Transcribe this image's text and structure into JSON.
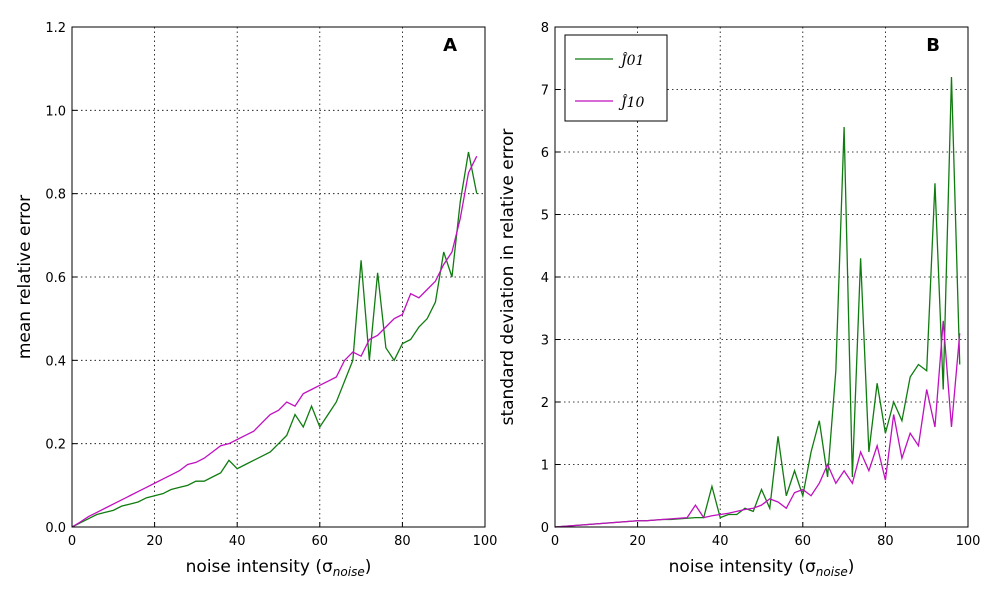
{
  "chart_data": [
    {
      "type": "line",
      "annotation": "A",
      "x_label": [
        "noise intensity (σ",
        "noise",
        ")"
      ],
      "y_label": "mean relative error",
      "x": [
        0,
        2,
        4,
        6,
        8,
        10,
        12,
        14,
        16,
        18,
        20,
        22,
        24,
        26,
        28,
        30,
        32,
        34,
        36,
        38,
        40,
        42,
        44,
        46,
        48,
        50,
        52,
        54,
        56,
        58,
        60,
        62,
        64,
        66,
        68,
        70,
        72,
        74,
        76,
        78,
        80,
        82,
        84,
        86,
        88,
        90,
        92,
        94,
        96,
        98
      ],
      "series": [
        {
          "name": "Ĵ01",
          "color": "#107c10",
          "values": [
            0,
            0.01,
            0.02,
            0.03,
            0.035,
            0.04,
            0.05,
            0.055,
            0.06,
            0.07,
            0.075,
            0.08,
            0.09,
            0.095,
            0.1,
            0.11,
            0.11,
            0.12,
            0.13,
            0.16,
            0.14,
            0.15,
            0.16,
            0.17,
            0.18,
            0.2,
            0.22,
            0.27,
            0.24,
            0.29,
            0.24,
            0.27,
            0.3,
            0.35,
            0.4,
            0.64,
            0.4,
            0.61,
            0.43,
            0.4,
            0.44,
            0.45,
            0.48,
            0.5,
            0.54,
            0.66,
            0.6,
            0.78,
            0.9,
            0.8
          ]
        },
        {
          "name": "Ĵ10",
          "color": "#c010c0",
          "values": [
            0,
            0.012,
            0.025,
            0.035,
            0.045,
            0.055,
            0.065,
            0.075,
            0.085,
            0.095,
            0.105,
            0.115,
            0.125,
            0.135,
            0.15,
            0.155,
            0.165,
            0.18,
            0.195,
            0.2,
            0.21,
            0.22,
            0.23,
            0.25,
            0.27,
            0.28,
            0.3,
            0.29,
            0.32,
            0.33,
            0.34,
            0.35,
            0.36,
            0.4,
            0.42,
            0.41,
            0.45,
            0.46,
            0.48,
            0.5,
            0.51,
            0.56,
            0.55,
            0.57,
            0.59,
            0.63,
            0.66,
            0.74,
            0.85,
            0.89
          ]
        }
      ],
      "xlim": [
        0,
        100
      ],
      "xticks": [
        0,
        20,
        40,
        60,
        80,
        100
      ],
      "ylim": [
        0,
        1.2
      ],
      "yticks": [
        {
          "value": 0,
          "label": "0.0"
        },
        0.2,
        0.4,
        0.6,
        0.8,
        {
          "value": 1,
          "label": "1.0"
        },
        1.2
      ],
      "grid": true
    },
    {
      "type": "line",
      "annotation": "B",
      "x_label": [
        "noise intensity (σ",
        "noise",
        ")"
      ],
      "y_label": "standard deviation in relative error",
      "x": [
        0,
        2,
        4,
        6,
        8,
        10,
        12,
        14,
        16,
        18,
        20,
        22,
        24,
        26,
        28,
        30,
        32,
        34,
        36,
        38,
        40,
        42,
        44,
        46,
        48,
        50,
        52,
        54,
        56,
        58,
        60,
        62,
        64,
        66,
        68,
        70,
        72,
        74,
        76,
        78,
        80,
        82,
        84,
        86,
        88,
        90,
        92,
        94,
        96,
        98
      ],
      "series": [
        {
          "name": "Ĵ01",
          "color": "#107c10",
          "values": [
            0,
            0.01,
            0.02,
            0.03,
            0.04,
            0.05,
            0.06,
            0.07,
            0.08,
            0.09,
            0.1,
            0.1,
            0.11,
            0.12,
            0.12,
            0.13,
            0.14,
            0.15,
            0.15,
            0.65,
            0.15,
            0.2,
            0.2,
            0.3,
            0.25,
            0.6,
            0.3,
            1.45,
            0.5,
            0.9,
            0.5,
            1.2,
            1.7,
            0.8,
            2.5,
            6.4,
            0.8,
            4.3,
            1.2,
            2.3,
            1.5,
            2.0,
            1.7,
            2.4,
            2.6,
            2.5,
            5.5,
            2.2,
            7.2,
            2.6
          ]
        },
        {
          "name": "Ĵ10",
          "color": "#c010c0",
          "values": [
            0,
            0.01,
            0.02,
            0.03,
            0.04,
            0.05,
            0.06,
            0.07,
            0.08,
            0.09,
            0.1,
            0.1,
            0.11,
            0.12,
            0.13,
            0.14,
            0.15,
            0.35,
            0.15,
            0.18,
            0.2,
            0.22,
            0.25,
            0.28,
            0.3,
            0.35,
            0.45,
            0.4,
            0.3,
            0.55,
            0.6,
            0.5,
            0.7,
            1.0,
            0.7,
            0.9,
            0.7,
            1.2,
            0.9,
            1.3,
            0.75,
            1.8,
            1.1,
            1.5,
            1.3,
            2.2,
            1.6,
            3.3,
            1.6,
            3.1
          ]
        }
      ],
      "xlim": [
        0,
        100
      ],
      "xticks": [
        0,
        20,
        40,
        60,
        80,
        100
      ],
      "ylim": [
        0,
        8
      ],
      "yticks": [
        0,
        1,
        2,
        3,
        4,
        5,
        6,
        7,
        8
      ],
      "grid": true,
      "legend": "upper left"
    }
  ]
}
